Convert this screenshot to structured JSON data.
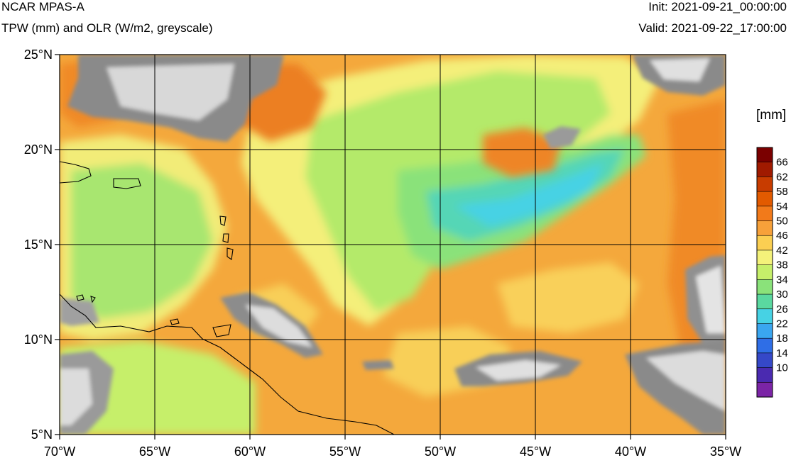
{
  "header": {
    "title": "NCAR MPAS-A",
    "subtitle": "TPW (mm) and OLR (W/m2, greyscale)",
    "init": "Init: 2021-09-21_00:00:00",
    "valid": "Valid: 2021-09-22_17:00:00"
  },
  "map": {
    "lon_range": [
      -70,
      -35
    ],
    "lat_range": [
      5,
      25
    ],
    "lon_ticks": [
      {
        "value": -70,
        "label": "70°W"
      },
      {
        "value": -65,
        "label": "65°W"
      },
      {
        "value": -60,
        "label": "60°W"
      },
      {
        "value": -55,
        "label": "55°W"
      },
      {
        "value": -50,
        "label": "50°W"
      },
      {
        "value": -45,
        "label": "45°W"
      },
      {
        "value": -40,
        "label": "40°W"
      },
      {
        "value": -35,
        "label": "35°W"
      }
    ],
    "lat_ticks": [
      {
        "value": 25,
        "label": "25°N"
      },
      {
        "value": 20,
        "label": "20°N"
      },
      {
        "value": 15,
        "label": "15°N"
      },
      {
        "value": 10,
        "label": "10°N"
      },
      {
        "value": 5,
        "label": "5°N"
      }
    ],
    "background_color": "#f4a83c",
    "grid_color": "#000000"
  },
  "colorbar": {
    "units": "[mm]",
    "levels": [
      "66",
      "62",
      "58",
      "54",
      "50",
      "46",
      "42",
      "38",
      "34",
      "30",
      "26",
      "22",
      "18",
      "14",
      "10"
    ],
    "colors": [
      "#7a0000",
      "#a01a00",
      "#c83c00",
      "#e25a00",
      "#f27a1a",
      "#f7a13a",
      "#fbcf52",
      "#f4f27a",
      "#c6ef6a",
      "#8ae27a",
      "#5ad8a0",
      "#46d2e4",
      "#3aa6f0",
      "#2f6ee6",
      "#3548c8",
      "#4a2ab0",
      "#7b24a6"
    ]
  }
}
